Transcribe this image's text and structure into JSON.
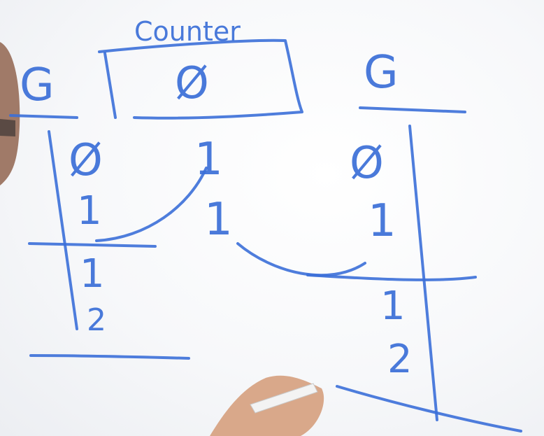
{
  "board": {
    "left_column_header": "G",
    "counter_label": "Counter",
    "counter_value": "Ø",
    "right_column_header": "G",
    "left_column_values": [
      "Ø",
      "1",
      "1",
      "2"
    ],
    "middle_column_values": [
      "1",
      "1"
    ],
    "right_column_values": [
      "Ø",
      "1",
      "1",
      "2"
    ]
  },
  "colors": {
    "marker_ink": "#3b6fd8",
    "board": "#f7f8fa",
    "hand": "#d9a88a",
    "marker_body": "#f3f3f3"
  }
}
